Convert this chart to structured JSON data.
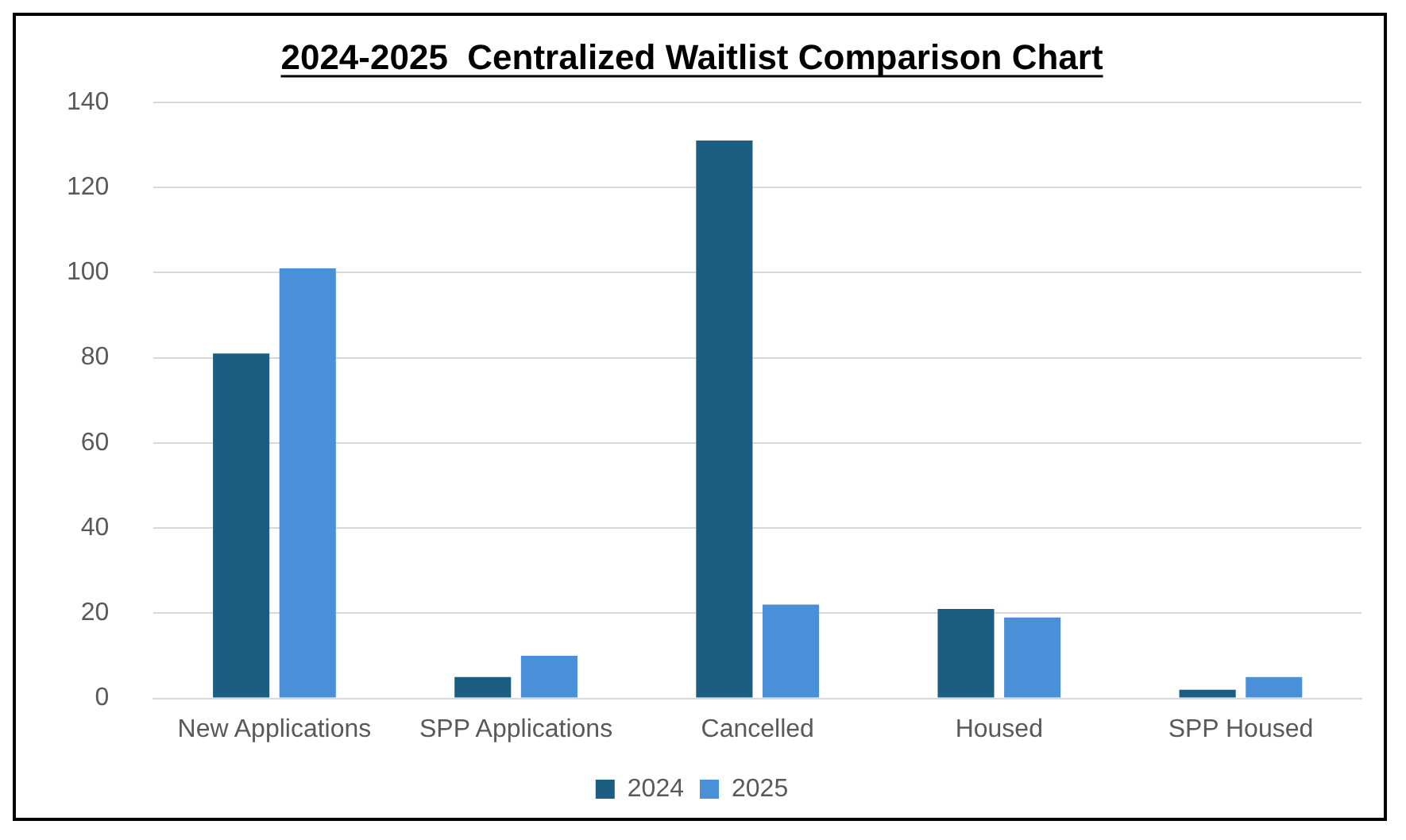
{
  "chart_data": {
    "type": "bar",
    "title": "2024-2025  Centralized Waitlist Comparison Chart",
    "categories": [
      "New Applications",
      "SPP Applications",
      "Cancelled",
      "Housed",
      "SPP Housed"
    ],
    "series": [
      {
        "name": "2024",
        "color": "#1b5e82",
        "values": [
          81,
          5,
          131,
          21,
          2
        ]
      },
      {
        "name": "2025",
        "color": "#4a90d9",
        "values": [
          101,
          10,
          22,
          19,
          5
        ]
      }
    ],
    "ylim": [
      0,
      140
    ],
    "yticks": [
      0,
      20,
      40,
      60,
      80,
      100,
      120,
      140
    ],
    "grid": "y",
    "legend": "bottom"
  }
}
